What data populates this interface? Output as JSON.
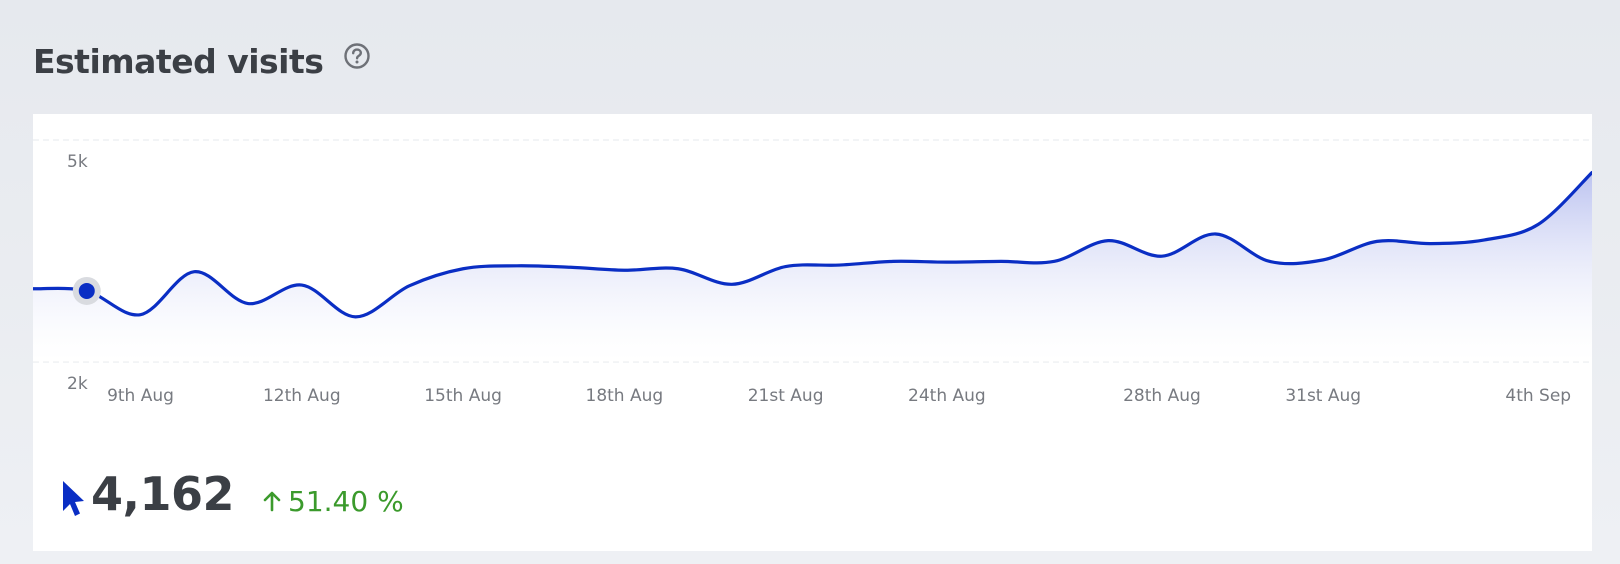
{
  "header": {
    "title": "Estimated visits",
    "help_icon": "question-circle-icon"
  },
  "summary": {
    "icon": "cursor-pointer-icon",
    "value": "4,162",
    "change_icon": "arrow-up-icon",
    "change": "51.40 %"
  },
  "colors": {
    "line": "#0a2ec4",
    "area_top": "#bcc3f0",
    "positive": "#3b9a2c",
    "title": "#3b3f45"
  },
  "chart_data": {
    "type": "area",
    "title": "",
    "xlabel": "",
    "ylabel": "",
    "ylim": [
      2000,
      5000
    ],
    "ytick_labels": [
      "5k",
      "2k"
    ],
    "yticks": [
      5000,
      2000
    ],
    "grid": true,
    "x": [
      "7th Aug",
      "8th Aug",
      "9th Aug",
      "10th Aug",
      "11th Aug",
      "12th Aug",
      "13th Aug",
      "14th Aug",
      "15th Aug",
      "16th Aug",
      "17th Aug",
      "18th Aug",
      "19th Aug",
      "20th Aug",
      "21st Aug",
      "22nd Aug",
      "23rd Aug",
      "24th Aug",
      "25th Aug",
      "26th Aug",
      "27th Aug",
      "28th Aug",
      "29th Aug",
      "30th Aug",
      "31st Aug",
      "1st Sep",
      "2nd Sep",
      "3rd Sep",
      "4th Sep",
      "5th Sep"
    ],
    "xtick_labels": [
      "9th Aug",
      "12th Aug",
      "15th Aug",
      "18th Aug",
      "21st Aug",
      "24th Aug",
      "28th Aug",
      "31st Aug",
      "4th Sep"
    ],
    "xticks": [
      "9th Aug",
      "12th Aug",
      "15th Aug",
      "18th Aug",
      "21st Aug",
      "24th Aug",
      "28th Aug",
      "31st Aug",
      "4th Sep"
    ],
    "series": [
      {
        "values": [
          2990,
          2960,
          2640,
          3220,
          2790,
          3040,
          2610,
          3030,
          3260,
          3300,
          3280,
          3240,
          3260,
          3050,
          3290,
          3310,
          3360,
          3350,
          3360,
          3360,
          3640,
          3430,
          3730,
          3360,
          3380,
          3630,
          3600,
          3650,
          3860,
          4560
        ]
      }
    ],
    "highlight": {
      "x": "8th Aug",
      "y": 2960
    }
  }
}
